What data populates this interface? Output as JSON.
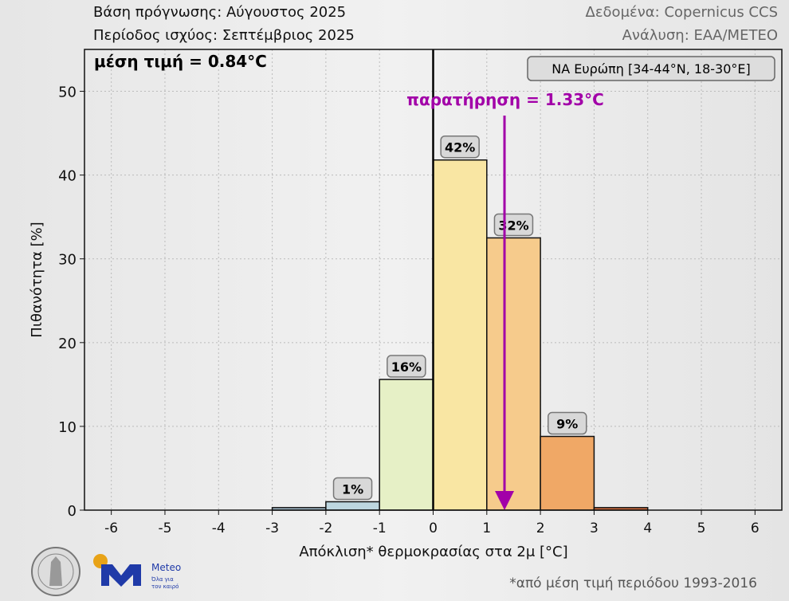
{
  "header": {
    "forecast_base": "Βάση πρόγνωσης: Αύγουστος 2025",
    "valid_period": "Περίοδος ισχύος: Σεπτέμβριος 2025",
    "data_source": "Δεδομένα: Copernicus CCS",
    "analysis": "Ανάλυση: ΕΑΑ/METEO"
  },
  "footnote": "*από μέση τιμή περιόδου 1993-2016",
  "logos": {
    "meteo_name": "Meteo",
    "meteo_tagline1": "Όλα για",
    "meteo_tagline2": "τον καιρό",
    "seal": "National Observatory of Athens seal"
  },
  "chart_data": {
    "type": "bar",
    "xlabel": "Απόκλιση* θερμοκρασίας στα 2μ [°C]",
    "ylabel": "Πιθανότητα [%]",
    "xlim": [
      -6.5,
      6.5
    ],
    "ylim": [
      0,
      55
    ],
    "xticks": [
      -6,
      -5,
      -4,
      -3,
      -2,
      -1,
      0,
      1,
      2,
      3,
      4,
      5,
      6
    ],
    "yticks": [
      0,
      10,
      20,
      30,
      40,
      50
    ],
    "grid": true,
    "bins": [
      {
        "from": -3,
        "to": -2,
        "value": 0.3,
        "label": "",
        "color": "#a9c3d2"
      },
      {
        "from": -2,
        "to": -1,
        "value": 1.0,
        "label": "1%",
        "color": "#bdd6df"
      },
      {
        "from": -1,
        "to": 0,
        "value": 15.6,
        "label": "16%",
        "color": "#e6f0c6"
      },
      {
        "from": 0,
        "to": 1,
        "value": 41.8,
        "label": "42%",
        "color": "#f9e6a3"
      },
      {
        "from": 1,
        "to": 2,
        "value": 32.5,
        "label": "32%",
        "color": "#f6cb8c"
      },
      {
        "from": 2,
        "to": 3,
        "value": 8.8,
        "label": "9%",
        "color": "#f0a866"
      },
      {
        "from": 3,
        "to": 4,
        "value": 0.3,
        "label": "",
        "color": "#d9703f"
      }
    ],
    "mean_text": "μέση τιμή = 0.84°C",
    "region_text": "ΝΑ Ευρώπη [34-44°N, 18-30°E]",
    "zero_line": 0,
    "observation": {
      "value": 1.33,
      "text": "παρατήρηση = 1.33°C",
      "color": "#a200a8"
    }
  }
}
